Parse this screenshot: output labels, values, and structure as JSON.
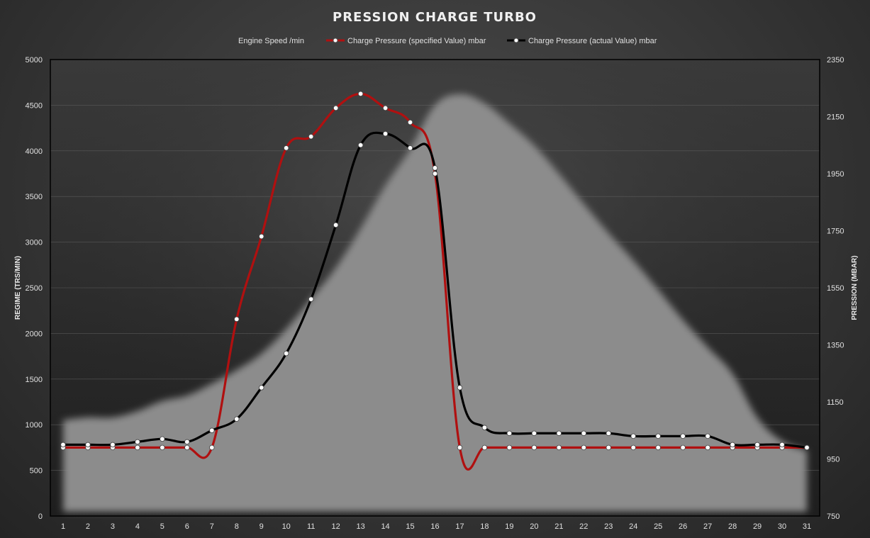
{
  "chart_data": {
    "type": "line",
    "title": "PRESSION  CHARGE TURBO",
    "ylabel_left": "REGIME  (TRS/MIN)",
    "ylabel_right": "PRESSION  (MBAR)",
    "x": [
      1,
      2,
      3,
      4,
      5,
      6,
      7,
      8,
      9,
      10,
      11,
      12,
      13,
      14,
      15,
      16,
      17,
      18,
      19,
      20,
      21,
      22,
      23,
      24,
      25,
      26,
      27,
      28,
      29,
      30,
      31
    ],
    "ylim_left": [
      0,
      5000
    ],
    "ylim_right": [
      750,
      2350
    ],
    "yticks_left": [
      0,
      500,
      1000,
      1500,
      2000,
      2500,
      3000,
      3500,
      4000,
      4500,
      5000
    ],
    "yticks_right": [
      750,
      950,
      1150,
      1350,
      1550,
      1750,
      1950,
      2150,
      2350
    ],
    "grid": true,
    "legend_position": "top",
    "series": [
      {
        "name": "Engine Speed  /min",
        "kind": "area",
        "axis": "left",
        "color": "#8c8c8c",
        "values": [
          1050,
          1080,
          1080,
          1150,
          1260,
          1320,
          1450,
          1600,
          1780,
          2050,
          2380,
          2720,
          3150,
          3620,
          4020,
          4500,
          4620,
          4520,
          4300,
          4060,
          3750,
          3420,
          3100,
          2800,
          2480,
          2150,
          1850,
          1560,
          1080,
          820,
          720
        ]
      },
      {
        "name": "Charge Pressure (specified Value)  mbar",
        "kind": "line",
        "axis": "right",
        "color": "#b01010",
        "values": [
          990,
          990,
          990,
          990,
          990,
          990,
          990,
          1440,
          1730,
          2040,
          2080,
          2180,
          2230,
          2180,
          2130,
          1950,
          990,
          990,
          990,
          990,
          990,
          990,
          990,
          990,
          990,
          990,
          990,
          990,
          990,
          990,
          990
        ]
      },
      {
        "name": "Charge Pressure (actual Value)  mbar",
        "kind": "line",
        "axis": "right",
        "color": "#000000",
        "values": [
          1000,
          1000,
          1000,
          1010,
          1020,
          1010,
          1050,
          1090,
          1200,
          1320,
          1510,
          1770,
          2050,
          2090,
          2040,
          1970,
          1200,
          1060,
          1040,
          1040,
          1040,
          1040,
          1040,
          1030,
          1030,
          1030,
          1030,
          1000,
          1000,
          1000,
          990
        ]
      }
    ]
  }
}
